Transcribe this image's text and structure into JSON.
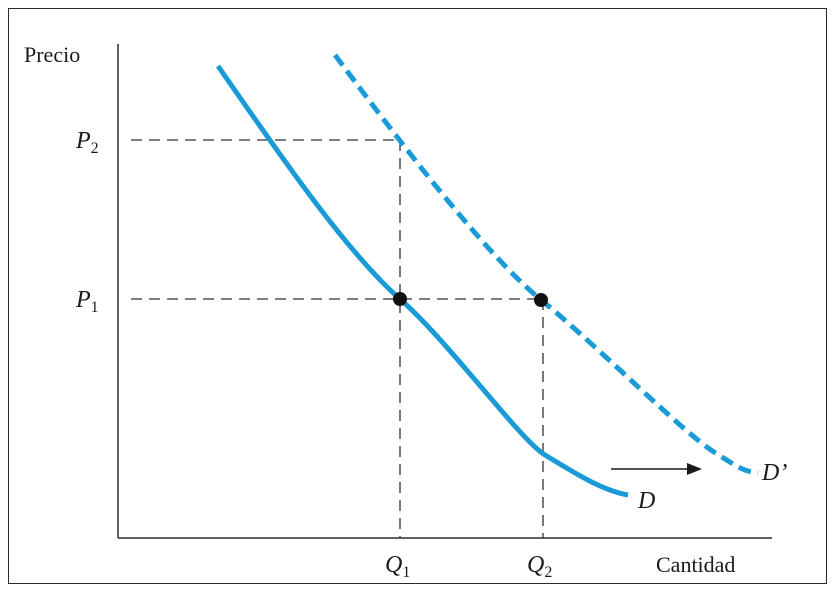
{
  "chart_data": {
    "type": "line",
    "ylabel": "Precio",
    "xlabel": "Cantidad",
    "price_ticks": [
      {
        "main": "P",
        "sub": "2",
        "value": 2
      },
      {
        "main": "P",
        "sub": "1",
        "value": 1
      }
    ],
    "quantity_ticks": [
      {
        "main": "Q",
        "sub": "1",
        "value": 1
      },
      {
        "main": "Q",
        "sub": "2",
        "value": 2
      }
    ],
    "series": [
      {
        "name": "D",
        "style": "solid",
        "color": "#1a9ad6",
        "passes_through": [
          1,
          1
        ]
      },
      {
        "name": "D’",
        "style": "dashed",
        "color": "#1a9ad6",
        "passes_through": [
          2,
          1
        ]
      }
    ],
    "points": [
      {
        "q": 1,
        "p": 1
      },
      {
        "q": 2,
        "p": 1
      }
    ],
    "annotation": "arrow from D toward D’ (rightward shift of demand)",
    "grid": false,
    "legend": "none"
  }
}
